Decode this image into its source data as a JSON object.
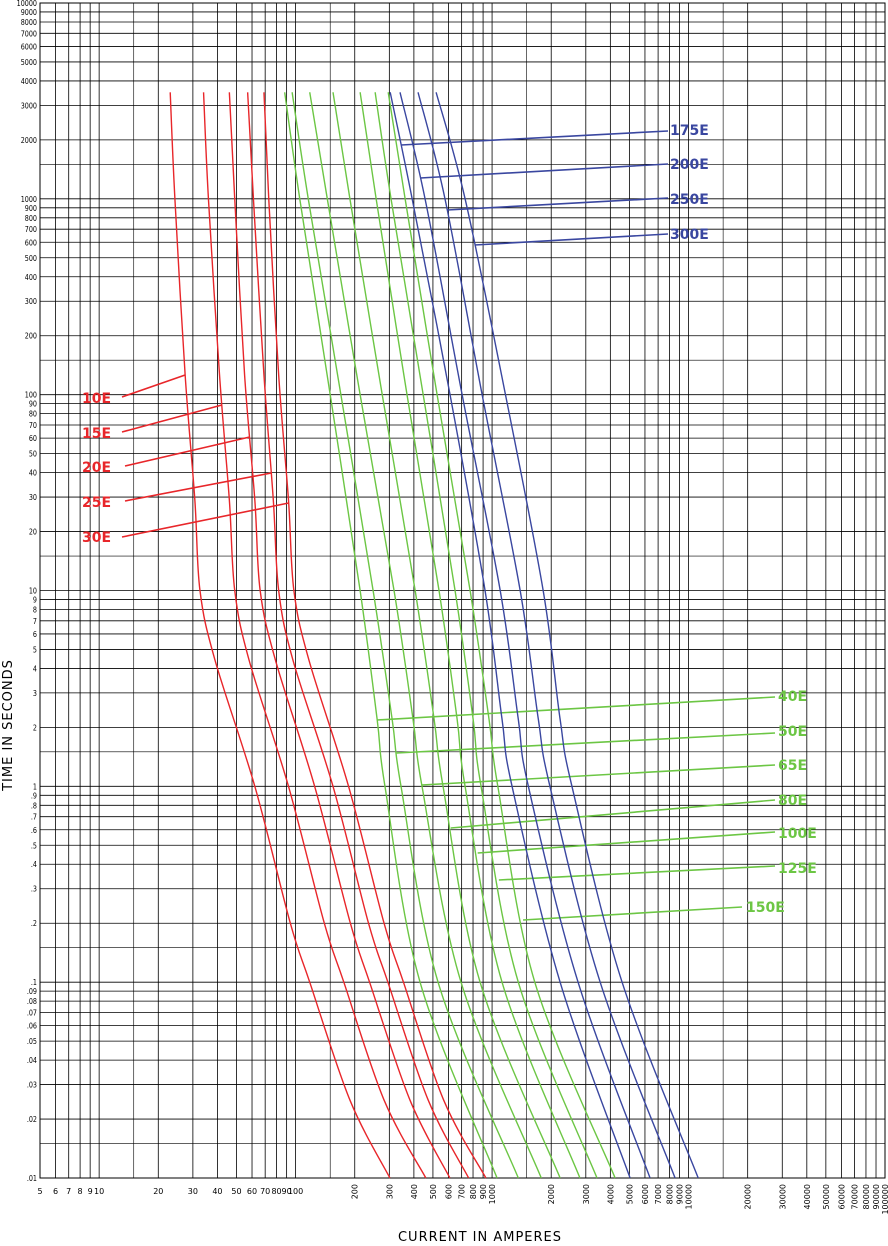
{
  "chart_data": {
    "type": "line",
    "xlabel": "CURRENT IN AMPERES",
    "ylabel": "TIME IN SECONDS",
    "log_x": true,
    "log_y": true,
    "grid": true,
    "xlim": [
      5,
      100000
    ],
    "ylim": [
      0.01,
      10000
    ],
    "xticks": [
      5,
      6,
      7,
      8,
      9,
      10,
      20,
      30,
      40,
      50,
      60,
      70,
      80,
      90,
      100,
      200,
      300,
      400,
      500,
      600,
      700,
      800,
      900,
      1000,
      2000,
      3000,
      4000,
      5000,
      6000,
      7000,
      8000,
      9000,
      10000,
      20000,
      30000,
      40000,
      50000,
      60000,
      70000,
      80000,
      90000,
      100000
    ],
    "x_minor_gridlines": [
      15,
      150,
      1500,
      15000
    ],
    "yticks": [
      10000,
      9000,
      8000,
      7000,
      6000,
      5000,
      4000,
      3000,
      2000,
      1000,
      900,
      800,
      700,
      600,
      500,
      400,
      300,
      200,
      100,
      90,
      80,
      70,
      60,
      50,
      40,
      30,
      20,
      10,
      9,
      8,
      7,
      6,
      5,
      4,
      3,
      2,
      1,
      {
        "value": 0.9,
        "label": ".9"
      },
      {
        "value": 0.8,
        "label": ".8"
      },
      {
        "value": 0.7,
        "label": ".7"
      },
      {
        "value": 0.6,
        "label": ".6"
      },
      {
        "value": 0.5,
        "label": ".5"
      },
      {
        "value": 0.4,
        "label": ".4"
      },
      {
        "value": 0.3,
        "label": ".3"
      },
      {
        "value": 0.2,
        "label": ".2"
      },
      {
        "value": 0.1,
        "label": ".1"
      },
      {
        "value": 0.09,
        "label": ".09"
      },
      {
        "value": 0.08,
        "label": ".08"
      },
      {
        "value": 0.07,
        "label": ".07"
      },
      {
        "value": 0.06,
        "label": ".06"
      },
      {
        "value": 0.05,
        "label": ".05"
      },
      {
        "value": 0.04,
        "label": ".04"
      },
      {
        "value": 0.03,
        "label": ".03"
      },
      {
        "value": 0.02,
        "label": ".02"
      },
      {
        "value": 0.01,
        "label": ".01"
      }
    ],
    "y_minor_gridlines": [
      1500,
      150,
      15,
      1.5,
      0.15,
      0.015
    ],
    "series": [
      {
        "name": "10E",
        "color": "#e8262a",
        "x": [
          23,
          24.3,
          27.4,
          30.7,
          32.6,
          38.9,
          62,
          94,
          118,
          189,
          302
        ],
        "values": [
          3500,
          1000,
          126,
          29,
          10,
          4.4,
          1,
          0.2,
          0.1,
          0.025,
          0.01
        ]
      },
      {
        "name": "15E",
        "color": "#e8262a",
        "x": [
          34,
          36,
          41,
          46,
          49,
          58,
          92,
          140,
          176,
          282,
          460
        ],
        "values": [
          3500,
          1000,
          126,
          29,
          10,
          4.4,
          1,
          0.2,
          0.1,
          0.025,
          0.01
        ]
      },
      {
        "name": "20E",
        "color": "#e8262a",
        "x": [
          46,
          49,
          55,
          62,
          66,
          79,
          125,
          190,
          238,
          382,
          610
        ],
        "values": [
          3500,
          1000,
          126,
          29,
          10,
          4.4,
          1,
          0.2,
          0.1,
          0.025,
          0.01
        ]
      },
      {
        "name": "25E",
        "color": "#e8262a",
        "x": [
          57,
          61,
          69,
          77,
          82,
          97,
          155,
          235,
          295,
          473,
          760
        ],
        "values": [
          3500,
          1000,
          126,
          29,
          10,
          4.4,
          1,
          0.2,
          0.1,
          0.025,
          0.01
        ]
      },
      {
        "name": "30E",
        "color": "#e8262a",
        "x": [
          69,
          73,
          82,
          92,
          98,
          117,
          186,
          282,
          354,
          567,
          930
        ],
        "values": [
          3500,
          1000,
          126,
          29,
          10,
          4.4,
          1,
          0.2,
          0.1,
          0.025,
          0.01
        ]
      },
      {
        "name": "40E",
        "color": "#6cc644",
        "x": [
          88,
          105,
          150,
          213,
          260,
          285,
          430,
          1060
        ],
        "values": [
          3500,
          1000,
          100,
          10,
          2.2,
          1,
          0.1,
          0.01
        ]
      },
      {
        "name": "50E",
        "color": "#6cc644",
        "x": [
          96,
          116,
          170,
          248,
          310,
          344,
          531,
          1360
        ],
        "values": [
          3500,
          1000,
          100,
          10,
          2.2,
          1,
          0.1,
          0.01
        ]
      },
      {
        "name": "65E",
        "color": "#6cc644",
        "x": [
          118,
          145,
          213,
          317,
          396,
          440,
          695,
          1780
        ],
        "values": [
          3500,
          1000,
          100,
          10,
          2.2,
          1,
          0.1,
          0.01
        ]
      },
      {
        "name": "80E",
        "color": "#6cc644",
        "x": [
          155,
          189,
          276,
          406,
          507,
          563,
          869,
          2220
        ],
        "values": [
          3500,
          1000,
          100,
          10,
          2.2,
          1,
          0.1,
          0.01
        ]
      },
      {
        "name": "100E",
        "color": "#6cc644",
        "x": [
          213,
          257,
          369,
          537,
          664,
          729,
          1124,
          2800
        ],
        "values": [
          3500,
          1000,
          100,
          10,
          2.2,
          1,
          0.1,
          0.01
        ]
      },
      {
        "name": "125E",
        "color": "#6cc644",
        "x": [
          254,
          306,
          446,
          648,
          801,
          879,
          1360,
          3420
        ],
        "values": [
          3500,
          1000,
          100,
          10,
          2.2,
          1,
          0.1,
          0.01
        ]
      },
      {
        "name": "150E",
        "color": "#6cc644",
        "x": [
          296,
          361,
          525,
          773,
          965,
          1070,
          1650,
          4230
        ],
        "values": [
          3500,
          1000,
          100,
          10,
          2.2,
          1,
          0.1,
          0.01
        ]
      },
      {
        "name": "175E",
        "color": "#3a47a0",
        "x": [
          303,
          392,
          611,
          921,
          1124,
          1264,
          2220,
          5040
        ],
        "values": [
          3500,
          1000,
          100,
          10,
          2.2,
          1,
          0.1,
          0.01
        ]
      },
      {
        "name": "200E",
        "color": "#3a47a0",
        "x": [
          340,
          456,
          704,
          1100,
          1360,
          1530,
          2740,
          6370
        ],
        "values": [
          3500,
          1000,
          100,
          10,
          2.2,
          1,
          0.1,
          0.01
        ]
      },
      {
        "name": "250E",
        "color": "#3a47a0",
        "x": [
          420,
          576,
          890,
          1390,
          1720,
          1970,
          3550,
          8540
        ],
        "values": [
          3500,
          1000,
          100,
          10,
          2.2,
          1,
          0.1,
          0.01
        ]
      },
      {
        "name": "300E",
        "color": "#3a47a0",
        "x": [
          519,
          729,
          1170,
          1820,
          2220,
          2550,
          4590,
          11200
        ],
        "values": [
          3500,
          1000,
          100,
          10,
          2.2,
          1,
          0.1,
          0.01
        ]
      }
    ]
  }
}
